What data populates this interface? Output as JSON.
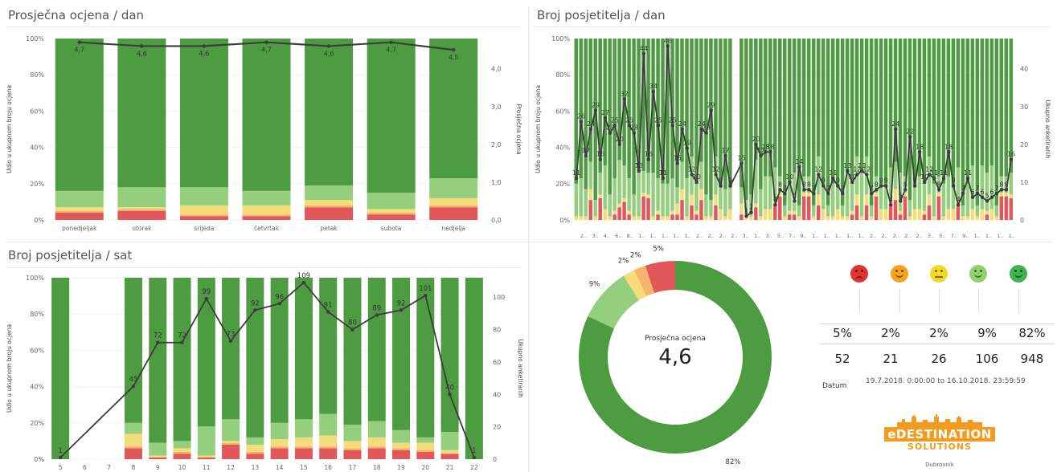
{
  "titles": {
    "avg_day": "Prosječna ocjena / dan",
    "visitors_day": "Broj posjetitelja / dan",
    "visitors_hour": "Broj posjetitelja / sat"
  },
  "colors": {
    "very_good": "#4e9c41",
    "good": "#94cf7d",
    "neutral": "#f4dc7a",
    "bad": "#f5b36b",
    "very_bad": "#e2575a",
    "line": "#3d3d3d"
  },
  "chart_data": [
    {
      "type": "bar",
      "stacked": "percent",
      "title": "Prosječna ocjena / dan",
      "ylabel": "Udio u ukupnom broju ocjena",
      "y2label": "Prosječna ocjena",
      "yticks": [
        "0%",
        "20%",
        "40%",
        "60%",
        "80%",
        "100%"
      ],
      "y2ticks": [
        "0,0",
        "1,0",
        "2,0",
        "3,0",
        "4,0"
      ],
      "ylim": [
        0,
        100
      ],
      "y2lim": [
        0,
        4.8
      ],
      "categories": [
        "ponedjeljak",
        "utorak",
        "srijeda",
        "četvrtak",
        "petak",
        "subota",
        "nedjelja"
      ],
      "series": [
        {
          "name": "very_bad",
          "values": [
            4,
            5,
            2,
            2,
            7,
            3,
            7
          ]
        },
        {
          "name": "bad",
          "values": [
            1,
            1,
            1,
            1,
            1,
            1,
            1
          ]
        },
        {
          "name": "neutral",
          "values": [
            2,
            1,
            5,
            5,
            3,
            2,
            4
          ]
        },
        {
          "name": "good",
          "values": [
            9,
            11,
            10,
            8,
            8,
            9,
            11
          ]
        },
        {
          "name": "very_good",
          "values": [
            84,
            82,
            82,
            84,
            81,
            85,
            77
          ]
        }
      ],
      "line": {
        "name": "Prosječna ocjena",
        "values": [
          4.7,
          4.6,
          4.6,
          4.7,
          4.6,
          4.7,
          4.5
        ],
        "labels": [
          "4,7",
          "4,6",
          "4,6",
          "4,7",
          "4,6",
          "4,7",
          "4,5"
        ]
      }
    },
    {
      "type": "bar",
      "stacked": "percent",
      "title": "Broj posjetitelja / dan",
      "ylabel": "Udio u ukupnom broju ocjena",
      "y2label": "Ukupno anketiranih",
      "yticks": [
        "0%",
        "20%",
        "40%",
        "60%",
        "80%",
        "100%"
      ],
      "y2ticks": [
        "0",
        "10",
        "20",
        "30",
        "40"
      ],
      "ylim": [
        0,
        100
      ],
      "y2lim": [
        0,
        48
      ],
      "x": [
        1,
        2,
        3,
        4,
        5,
        6,
        7,
        8,
        9,
        10,
        11,
        12,
        13,
        14,
        15,
        16,
        17,
        18,
        19,
        20,
        21,
        22,
        23,
        24,
        25,
        26,
        27,
        28,
        29,
        30,
        31,
        32,
        33,
        34,
        35,
        36,
        37,
        38,
        39,
        40,
        41,
        42,
        43,
        44,
        45,
        46,
        47,
        48,
        49,
        50,
        51,
        52,
        53,
        54,
        55,
        56,
        57,
        58,
        59,
        60,
        61,
        62,
        63,
        64,
        65,
        66,
        67,
        68,
        69,
        70,
        71,
        72,
        73,
        74,
        75,
        76,
        77,
        78,
        79,
        80,
        81,
        82,
        83,
        84,
        85,
        86,
        87,
        88,
        89,
        90
      ],
      "xticks": [
        "2..",
        "3..",
        "4..",
        "6..",
        "8..",
        "1..",
        "1..",
        "1..",
        "1..",
        "1..",
        "2..",
        "2..",
        "2..",
        "2..",
        "3..",
        "1..",
        "3..",
        "5..",
        "7..",
        "9..",
        "1..",
        "1..",
        "1..",
        "1..",
        "1..",
        "2..",
        "2..",
        "2..",
        "2..",
        "2..",
        "3..",
        "5..",
        "7..",
        "9..",
        "1..",
        "1..",
        "1..",
        "1.."
      ],
      "gap_after_index": 32,
      "line": {
        "name": "Ukupno anketiranih",
        "values": [
          11,
          26,
          17,
          24,
          29,
          16,
          27,
          23,
          25,
          20,
          32,
          25,
          23,
          13,
          44,
          16,
          34,
          25,
          11,
          46,
          25,
          15,
          24,
          19,
          12,
          10,
          24,
          23,
          29,
          12,
          9,
          17,
          9,
          15,
          1,
          2,
          20,
          17,
          18,
          18,
          4,
          8,
          7,
          10,
          5,
          14,
          8,
          8,
          7,
          12,
          9,
          7,
          11,
          9,
          7,
          13,
          10,
          12,
          13,
          12,
          7,
          8,
          9,
          9,
          4,
          24,
          5,
          8,
          22,
          9,
          18,
          10,
          12,
          11,
          8,
          11,
          18,
          9,
          4,
          7,
          11,
          6,
          7,
          6,
          5,
          6,
          7,
          8,
          8,
          16
        ],
        "labels": [
          "11",
          "26",
          "17",
          "24",
          "29",
          "16",
          "27",
          "23",
          "25",
          "20",
          "32",
          "25",
          "23",
          "13",
          "44",
          "16",
          "34",
          "25",
          "11",
          "46",
          "25",
          "15",
          "24",
          "19",
          "12",
          "10",
          "24",
          "23",
          "29",
          "12",
          "9",
          "17",
          "9",
          "15",
          "1",
          "2",
          "20",
          "17",
          "18",
          "18",
          "4",
          "8",
          "7",
          "10",
          "5",
          "14",
          "8",
          "8",
          "7",
          "12",
          "9",
          "7",
          "11",
          "9",
          "7",
          "13",
          "10",
          "12",
          "13",
          "12",
          "7",
          "8",
          "9",
          "9",
          "4",
          "24",
          "5",
          "8",
          "22",
          "9",
          "18",
          "10",
          "12",
          "11",
          "8",
          "11",
          "18",
          "9",
          "4",
          "7",
          "11",
          "6",
          "7",
          "6",
          "5",
          "6",
          "7",
          "8",
          "8",
          "16"
        ]
      }
    },
    {
      "type": "bar",
      "stacked": "percent",
      "title": "Broj posjetitelja / sat",
      "ylabel": "Udio u ukupnom broju ocjena",
      "y2label": "Ukupno anketiranih",
      "yticks": [
        "0%",
        "20%",
        "40%",
        "60%",
        "80%",
        "100%"
      ],
      "y2ticks": [
        "0",
        "20",
        "40",
        "60",
        "80",
        "100"
      ],
      "ylim": [
        0,
        100
      ],
      "y2lim": [
        0,
        112
      ],
      "categories": [
        "5",
        "6",
        "7",
        "8",
        "9",
        "10",
        "11",
        "12",
        "13",
        "14",
        "15",
        "16",
        "17",
        "18",
        "19",
        "20",
        "21",
        "22"
      ],
      "series": [
        {
          "name": "very_bad",
          "values": [
            0,
            0,
            0,
            6,
            1,
            3,
            1,
            8,
            3,
            6,
            6,
            6,
            5,
            6,
            5,
            4,
            3,
            0
          ]
        },
        {
          "name": "bad",
          "values": [
            0,
            0,
            0,
            1,
            0,
            1,
            0,
            1,
            1,
            1,
            1,
            1,
            1,
            1,
            1,
            1,
            0,
            0
          ]
        },
        {
          "name": "neutral",
          "values": [
            0,
            0,
            0,
            7,
            1,
            2,
            1,
            1,
            4,
            4,
            5,
            6,
            4,
            5,
            3,
            4,
            2,
            0
          ]
        },
        {
          "name": "good",
          "values": [
            0,
            0,
            0,
            6,
            7,
            4,
            16,
            12,
            4,
            9,
            10,
            12,
            9,
            9,
            7,
            3,
            10,
            0
          ]
        },
        {
          "name": "very_good",
          "values": [
            100,
            0,
            0,
            80,
            91,
            90,
            82,
            78,
            88,
            80,
            78,
            75,
            81,
            79,
            84,
            88,
            85,
            100
          ]
        }
      ],
      "line": {
        "name": "Ukupno anketiranih",
        "values": [
          1,
          null,
          null,
          45,
          72,
          72,
          99,
          73,
          92,
          96,
          109,
          91,
          80,
          89,
          92,
          101,
          40,
          1
        ],
        "labels": [
          "1",
          "",
          "",
          "45",
          "72",
          "72",
          "99",
          "73",
          "92",
          "96",
          "109",
          "91",
          "80",
          "89",
          "92",
          "101",
          "40",
          "1"
        ]
      }
    },
    {
      "type": "pie",
      "donut": true,
      "center_label": "Prosječna ocjena",
      "center_value": "4,6",
      "slices": [
        {
          "name": "very_good",
          "value": 82,
          "label": "82%"
        },
        {
          "name": "good",
          "value": 9,
          "label": "9%"
        },
        {
          "name": "neutral",
          "value": 2,
          "label": "2%"
        },
        {
          "name": "bad",
          "value": 2,
          "label": "2%"
        },
        {
          "name": "very_bad",
          "value": 5,
          "label": "5%"
        }
      ]
    }
  ],
  "summary": {
    "faces": [
      {
        "icon": "very-bad-face-icon",
        "color": "#e2332f",
        "mouth": "frown"
      },
      {
        "icon": "bad-face-icon",
        "color": "#f6a21c",
        "mouth": "smile"
      },
      {
        "icon": "neutral-face-icon",
        "color": "#f2d924",
        "mouth": "flat"
      },
      {
        "icon": "good-face-icon",
        "color": "#8fd46a",
        "mouth": "smile"
      },
      {
        "icon": "very-good-face-icon",
        "color": "#3fb34f",
        "mouth": "smile"
      }
    ],
    "percentages": [
      "5%",
      "2%",
      "2%",
      "9%",
      "82%"
    ],
    "counts": [
      "52",
      "21",
      "26",
      "106",
      "948"
    ],
    "datum_label": "Datum",
    "datum_range": "19.7.2018. 0:00:00 to 16.10.2018. 23:59:59"
  },
  "logo": {
    "line1": "eDESTINATION",
    "line2": "SOLUTIONS",
    "caption": "Dubrovnik"
  }
}
